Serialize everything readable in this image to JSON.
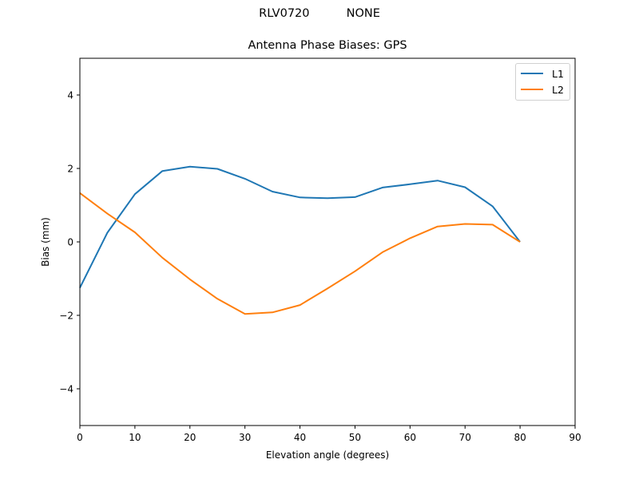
{
  "figure": {
    "suptitle": "RLV0720          NONE"
  },
  "chart_data": {
    "type": "line",
    "title": "Antenna Phase Biases: GPS",
    "suptitle": "RLV0720          NONE",
    "xlabel": "Elevation angle (degrees)",
    "ylabel": "Bias (mm)",
    "xlim": [
      0,
      90
    ],
    "ylim": [
      -5,
      5
    ],
    "xticks": [
      0,
      10,
      20,
      30,
      40,
      50,
      60,
      70,
      80,
      90
    ],
    "yticks": [
      -4,
      -2,
      0,
      2,
      4
    ],
    "ytick_labels": [
      "−4",
      "−2",
      "0",
      "2",
      "4"
    ],
    "grid": false,
    "legend_position": "upper right",
    "x": [
      0,
      5,
      10,
      15,
      20,
      25,
      30,
      35,
      40,
      45,
      50,
      55,
      60,
      65,
      70,
      75,
      80
    ],
    "series": [
      {
        "name": "L1",
        "color": "#1f77b4",
        "values": [
          -1.25,
          0.25,
          1.3,
          1.93,
          2.05,
          1.99,
          1.72,
          1.37,
          1.21,
          1.19,
          1.22,
          1.48,
          1.57,
          1.67,
          1.49,
          0.97,
          0.0
        ]
      },
      {
        "name": "L2",
        "color": "#ff7f0e",
        "values": [
          1.33,
          0.77,
          0.26,
          -0.43,
          -1.02,
          -1.55,
          -1.96,
          -1.92,
          -1.72,
          -1.27,
          -0.8,
          -0.28,
          0.1,
          0.42,
          0.49,
          0.47,
          0.0
        ]
      }
    ]
  }
}
